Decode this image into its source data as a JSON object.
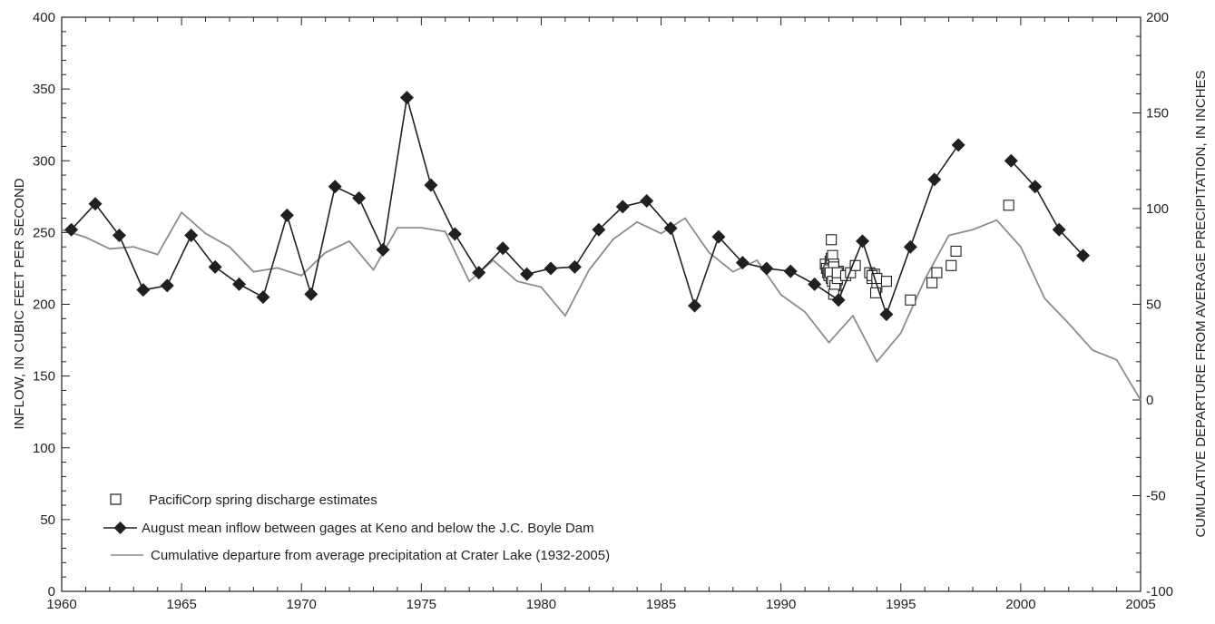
{
  "chart_data": {
    "type": "line",
    "xlabel": "",
    "ylabel": "INFLOW, IN CUBIC FEET PER SECOND",
    "y2label": "CUMULATIVE DEPARTURE FROM AVERAGE PRECIPITATION, IN INCHES",
    "xlim": [
      1960,
      2005
    ],
    "ylim": [
      0,
      400
    ],
    "y2lim": [
      -100,
      200
    ],
    "xticks": [
      1960,
      1965,
      1970,
      1975,
      1980,
      1985,
      1990,
      1995,
      2000,
      2005
    ],
    "yticks": [
      0,
      50,
      100,
      150,
      200,
      250,
      300,
      350,
      400
    ],
    "y2ticks": [
      -100,
      -50,
      0,
      50,
      100,
      150,
      200
    ],
    "grid": false,
    "legend_position": "lower-left",
    "series": [
      {
        "name": "PacifiCorp spring discharge estimates",
        "marker": "open-square",
        "axis": "left",
        "color": "#231f20",
        "x": [
          1991.85,
          1991.9,
          1991.95,
          1992.0,
          1992.05,
          1992.1,
          1992.15,
          1992.2,
          1992.25,
          1992.3,
          1992.35,
          1992.4,
          1992.1,
          1992.15,
          1992.2,
          1992.25,
          1992.3,
          1992.0,
          1992.1,
          1992.2,
          1992.3,
          1992.05,
          1992.15,
          1992.25,
          1992.35,
          1992.2,
          1992.35,
          1992.7,
          1992.9,
          1993.1,
          1993.7,
          1993.8,
          1993.9,
          1994.0,
          1993.8,
          1993.95,
          1994.0,
          1994.4,
          1995.4,
          1996.3,
          1996.5,
          1997.1,
          1997.3,
          1999.5
        ],
        "y": [
          228,
          225,
          222,
          220,
          230,
          232,
          224,
          226,
          219,
          221,
          217,
          223,
          245,
          234,
          228,
          214,
          210,
          224,
          218,
          226,
          220,
          222,
          216,
          213,
          218,
          207,
          222,
          220,
          222,
          227,
          222,
          218,
          221,
          212,
          220,
          208,
          218,
          216,
          203,
          215,
          222,
          227,
          237,
          269
        ]
      },
      {
        "name": "August mean inflow between gages at Keno and below the J.C. Boyle Dam",
        "marker": "filled-diamond",
        "axis": "left",
        "color": "#231f20",
        "x": [
          1960.4,
          1961.4,
          1962.4,
          1963.4,
          1964.4,
          1965.4,
          1966.4,
          1967.4,
          1968.4,
          1969.4,
          1970.4,
          1971.4,
          1972.4,
          1973.4,
          1974.4,
          1975.4,
          1976.4,
          1977.4,
          1978.4,
          1979.4,
          1980.4,
          1981.4,
          1982.4,
          1983.4,
          1984.4,
          1985.4,
          1986.4,
          1987.4,
          1988.4,
          1989.4,
          1990.4,
          1991.4,
          1992.4,
          1993.4,
          1994.4,
          1995.4,
          1996.4,
          1997.4,
          null,
          1999.6,
          2000.6,
          2001.6,
          2002.6
        ],
        "y": [
          252,
          270,
          248,
          210,
          213,
          248,
          226,
          214,
          205,
          262,
          207,
          282,
          274,
          238,
          344,
          283,
          249,
          222,
          239,
          221,
          225,
          226,
          252,
          268,
          272,
          253,
          199,
          247,
          229,
          225,
          223,
          214,
          203,
          244,
          193,
          240,
          287,
          311,
          null,
          300,
          282,
          252,
          234
        ]
      },
      {
        "name": "Cumulative departure from average precipitation at Crater Lake (1932-2005)",
        "marker": "none",
        "axis": "right",
        "color": "#8c8c8c",
        "x": [
          1960,
          1961,
          1962,
          1963,
          1964,
          1965,
          1966,
          1967,
          1968,
          1969,
          1970,
          1971,
          1972,
          1973,
          1974,
          1975,
          1976,
          1977,
          1978,
          1979,
          1980,
          1981,
          1982,
          1983,
          1984,
          1985,
          1986,
          1987,
          1988,
          1989,
          1990,
          1991,
          1992,
          1993,
          1994,
          1995,
          1996,
          1997,
          1998,
          1999,
          2000,
          2001,
          2002,
          2003,
          2004,
          2005
        ],
        "y": [
          89,
          85,
          79,
          80,
          76,
          98,
          87,
          80,
          67,
          69,
          65,
          77,
          83,
          68,
          90,
          90,
          88,
          62,
          73,
          62,
          59,
          44,
          68,
          84,
          93,
          87,
          95,
          77,
          67,
          73,
          55,
          46,
          30,
          44,
          20,
          35,
          63,
          86,
          89,
          94,
          80,
          53,
          40,
          26,
          21,
          0
        ]
      }
    ]
  }
}
